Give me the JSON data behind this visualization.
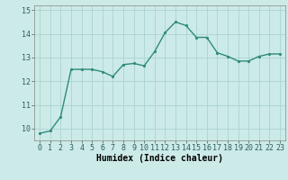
{
  "x": [
    0,
    1,
    2,
    3,
    4,
    5,
    6,
    7,
    8,
    9,
    10,
    11,
    12,
    13,
    14,
    15,
    16,
    17,
    18,
    19,
    20,
    21,
    22,
    23
  ],
  "y": [
    9.8,
    9.9,
    10.5,
    12.5,
    12.5,
    12.5,
    12.4,
    12.2,
    12.7,
    12.75,
    12.65,
    13.25,
    14.05,
    14.5,
    14.35,
    13.85,
    13.85,
    13.2,
    13.05,
    12.85,
    12.85,
    13.05,
    13.15,
    13.15
  ],
  "line_color": "#2e8b7a",
  "marker_color": "#2e8b7a",
  "bg_color": "#cceae8",
  "grid_color": "#aad4d0",
  "xlabel": "Humidex (Indice chaleur)",
  "ylim": [
    9.5,
    15.2
  ],
  "xlim": [
    -0.5,
    23.5
  ],
  "yticks": [
    10,
    11,
    12,
    13,
    14,
    15
  ],
  "xticks": [
    0,
    1,
    2,
    3,
    4,
    5,
    6,
    7,
    8,
    9,
    10,
    11,
    12,
    13,
    14,
    15,
    16,
    17,
    18,
    19,
    20,
    21,
    22,
    23
  ],
  "xtick_labels": [
    "0",
    "1",
    "2",
    "3",
    "4",
    "5",
    "6",
    "7",
    "8",
    "9",
    "10",
    "11",
    "12",
    "13",
    "14",
    "15",
    "16",
    "17",
    "18",
    "19",
    "20",
    "21",
    "22",
    "23"
  ],
  "xlabel_fontsize": 7,
  "tick_fontsize": 6,
  "linewidth": 1.0,
  "markersize": 2.5
}
